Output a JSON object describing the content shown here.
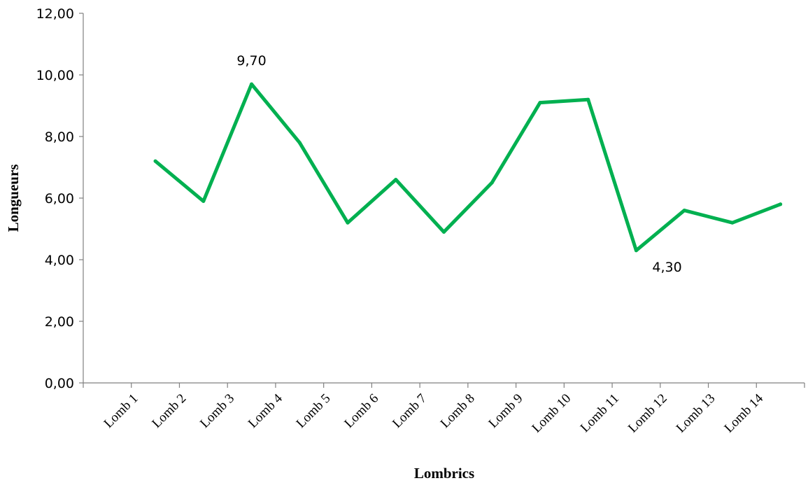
{
  "chart_data": {
    "type": "line",
    "title": "",
    "xlabel": "Lombrics",
    "ylabel": "Longueurs",
    "categories": [
      "Lomb 1",
      "Lomb 2",
      "Lomb 3",
      "Lomb 4",
      "Lomb 5",
      "Lomb 6",
      "Lomb 7",
      "Lomb 8",
      "Lomb 9",
      "Lomb 10",
      "Lomb 11",
      "Lomb 12",
      "Lomb 13",
      "Lomb 14"
    ],
    "series": [
      {
        "values": [
          7.2,
          5.9,
          9.7,
          7.8,
          5.2,
          6.6,
          4.9,
          6.5,
          9.1,
          9.2,
          4.3,
          5.6,
          5.2,
          5.8
        ],
        "color": "#00b050"
      }
    ],
    "ylim": [
      0,
      12
    ],
    "yticks": [
      "0,00",
      "2,00",
      "4,00",
      "6,00",
      "8,00",
      "10,00",
      "12,00"
    ],
    "data_labels": [
      {
        "category": "Lomb 3",
        "text": "9,70"
      },
      {
        "category": "Lomb 11",
        "text": "4,30"
      }
    ],
    "grid": false,
    "legend": "none"
  }
}
